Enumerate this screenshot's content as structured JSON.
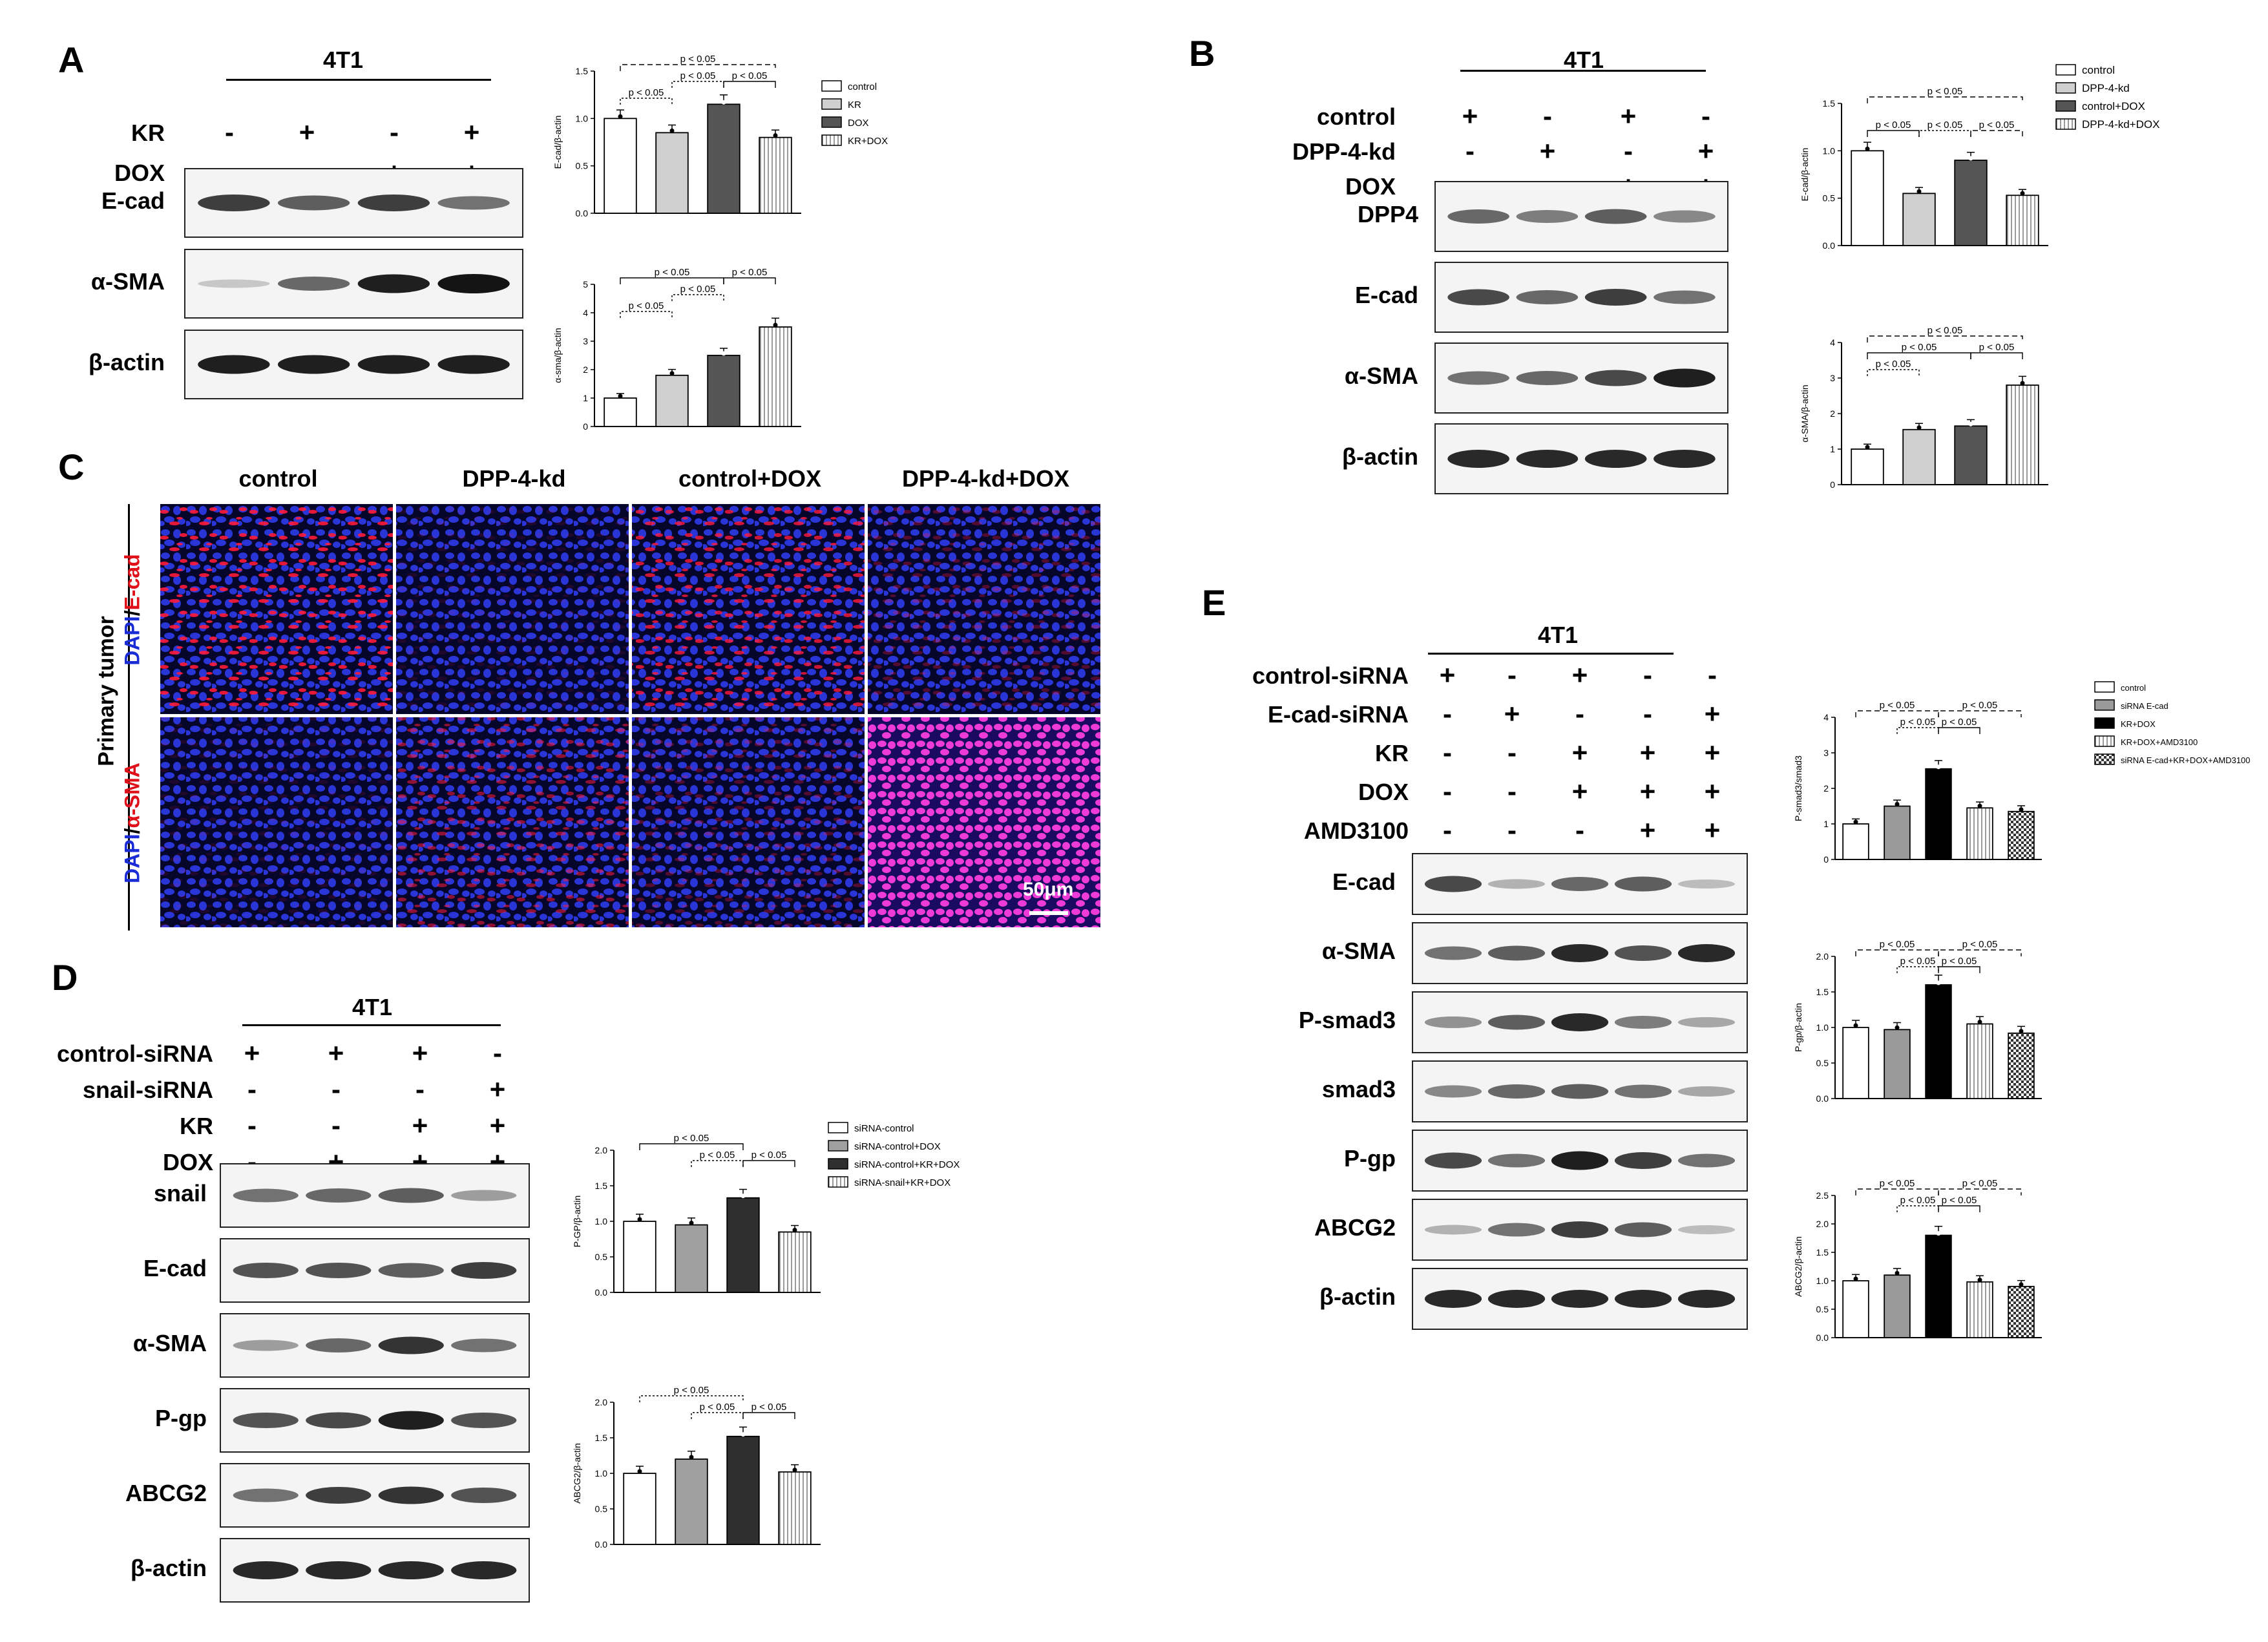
{
  "p_label": "p < 0.05",
  "panels": {
    "A": {
      "letter": "A",
      "cell_line": "4T1",
      "conditions": [
        {
          "label": "KR",
          "marks": [
            "-",
            "+",
            "-",
            "+"
          ]
        },
        {
          "label": "DOX",
          "marks": [
            "-",
            "-",
            "+",
            "+"
          ]
        }
      ],
      "blots": [
        {
          "label": "E-cad",
          "intensity": [
            0.8,
            0.65,
            0.8,
            0.55
          ]
        },
        {
          "label": "α-SMA",
          "intensity": [
            0.15,
            0.6,
            0.95,
            1.0
          ]
        },
        {
          "label": "β-actin",
          "intensity": [
            0.95,
            0.95,
            0.95,
            0.95
          ]
        }
      ],
      "legend": [
        "control",
        "KR",
        "DOX",
        "KR+DOX"
      ],
      "charts": [
        {
          "ylabel": "E-cad/β-actin",
          "ylim": [
            0,
            1.5
          ],
          "ticks": [
            "0.0",
            "0.5",
            "1.0",
            "1.5"
          ],
          "values": [
            1.0,
            0.85,
            1.15,
            0.8
          ]
        },
        {
          "ylabel": "α-sma/β-actin",
          "ylim": [
            0,
            5
          ],
          "ticks": [
            "0",
            "1",
            "2",
            "3",
            "4",
            "5"
          ],
          "values": [
            1.0,
            1.8,
            2.5,
            3.5
          ]
        }
      ]
    },
    "B": {
      "letter": "B",
      "cell_line": "4T1",
      "conditions": [
        {
          "label": "control",
          "marks": [
            "+",
            "-",
            "+",
            "-"
          ]
        },
        {
          "label": "DPP-4-kd",
          "marks": [
            "-",
            "+",
            "-",
            "+"
          ]
        },
        {
          "label": "DOX",
          "marks": [
            "-",
            "-",
            "+",
            "+"
          ]
        }
      ],
      "blots": [
        {
          "label": "DPP4",
          "intensity": [
            0.6,
            0.5,
            0.65,
            0.45
          ]
        },
        {
          "label": "E-cad",
          "intensity": [
            0.75,
            0.6,
            0.8,
            0.55
          ]
        },
        {
          "label": "α-SMA",
          "intensity": [
            0.55,
            0.6,
            0.75,
            0.95
          ]
        },
        {
          "label": "β-actin",
          "intensity": [
            0.9,
            0.9,
            0.9,
            0.9
          ]
        }
      ],
      "legend": [
        "control",
        "DPP-4-kd",
        "control+DOX",
        "DPP-4-kd+DOX"
      ],
      "charts": [
        {
          "ylabel": "E-cad/β-actin",
          "ylim": [
            0,
            1.5
          ],
          "ticks": [
            "0.0",
            "0.5",
            "1.0",
            "1.5"
          ],
          "values": [
            1.0,
            0.55,
            0.9,
            0.53
          ]
        },
        {
          "ylabel": "α-SMA/β-actin",
          "ylim": [
            0,
            4
          ],
          "ticks": [
            "0",
            "1",
            "2",
            "3",
            "4"
          ],
          "values": [
            1.0,
            1.55,
            1.65,
            2.8
          ]
        }
      ]
    },
    "C": {
      "letter": "C",
      "columns": [
        "control",
        "DPP-4-kd",
        "control+DOX",
        "DPP-4-kd+DOX"
      ],
      "side_label": "Primary tumor",
      "row_labels": [
        {
          "dapi": "DAPI",
          "slash": "/",
          "marker": "E-cad"
        },
        {
          "dapi": "DAPI",
          "slash": "/",
          "marker": "α-SMA"
        }
      ],
      "scale_bar": "50μm"
    },
    "D": {
      "letter": "D",
      "cell_line": "4T1",
      "conditions": [
        {
          "label": "control-siRNA",
          "marks": [
            "+",
            "+",
            "+",
            "-"
          ]
        },
        {
          "label": "snail-siRNA",
          "marks": [
            "-",
            "-",
            "-",
            "+"
          ]
        },
        {
          "label": "KR",
          "marks": [
            "-",
            "-",
            "+",
            "+"
          ]
        },
        {
          "label": "DOX",
          "marks": [
            "-",
            "+",
            "+",
            "+"
          ]
        }
      ],
      "blots": [
        {
          "label": "snail",
          "intensity": [
            0.55,
            0.6,
            0.65,
            0.35
          ]
        },
        {
          "label": "E-cad",
          "intensity": [
            0.7,
            0.7,
            0.65,
            0.8
          ]
        },
        {
          "label": "α-SMA",
          "intensity": [
            0.35,
            0.6,
            0.85,
            0.55
          ]
        },
        {
          "label": "P-gp",
          "intensity": [
            0.7,
            0.75,
            0.95,
            0.7
          ]
        },
        {
          "label": "ABCG2",
          "intensity": [
            0.55,
            0.8,
            0.85,
            0.7
          ]
        },
        {
          "label": "β-actin",
          "intensity": [
            0.9,
            0.9,
            0.9,
            0.9
          ]
        }
      ],
      "legend": [
        "siRNA-control",
        "siRNA-control+DOX",
        "siRNA-control+KR+DOX",
        "siRNA-snail+KR+DOX"
      ],
      "charts": [
        {
          "ylabel": "P-GP/β-actin",
          "ylim": [
            0,
            2.0
          ],
          "ticks": [
            "0.0",
            "0.5",
            "1.0",
            "1.5",
            "2.0"
          ],
          "values": [
            1.0,
            0.95,
            1.33,
            0.85
          ]
        },
        {
          "ylabel": "ABCG2/β-actin",
          "ylim": [
            0,
            2.0
          ],
          "ticks": [
            "0.0",
            "0.5",
            "1.0",
            "1.5",
            "2.0"
          ],
          "values": [
            1.0,
            1.2,
            1.52,
            1.02
          ]
        }
      ]
    },
    "E": {
      "letter": "E",
      "cell_line": "4T1",
      "conditions": [
        {
          "label": "control-siRNA",
          "marks": [
            "+",
            "-",
            "+",
            "-",
            "-"
          ]
        },
        {
          "label": "E-cad-siRNA",
          "marks": [
            "-",
            "+",
            "-",
            "-",
            "+"
          ]
        },
        {
          "label": "KR",
          "marks": [
            "-",
            "-",
            "+",
            "+",
            "+"
          ]
        },
        {
          "label": "DOX",
          "marks": [
            "-",
            "-",
            "+",
            "+",
            "+"
          ]
        },
        {
          "label": "AMD3100",
          "marks": [
            "-",
            "-",
            "-",
            "+",
            "+"
          ]
        }
      ],
      "blots": [
        {
          "label": "E-cad",
          "intensity": [
            0.75,
            0.25,
            0.6,
            0.65,
            0.2
          ]
        },
        {
          "label": "α-SMA",
          "intensity": [
            0.55,
            0.65,
            0.9,
            0.7,
            0.9
          ]
        },
        {
          "label": "P-smad3",
          "intensity": [
            0.4,
            0.65,
            0.9,
            0.5,
            0.3
          ]
        },
        {
          "label": "smad3",
          "intensity": [
            0.45,
            0.6,
            0.65,
            0.55,
            0.3
          ]
        },
        {
          "label": "P-gp",
          "intensity": [
            0.75,
            0.55,
            0.95,
            0.8,
            0.55
          ]
        },
        {
          "label": "ABCG2",
          "intensity": [
            0.25,
            0.55,
            0.8,
            0.65,
            0.2
          ]
        },
        {
          "label": "β-actin",
          "intensity": [
            0.9,
            0.9,
            0.9,
            0.9,
            0.9
          ]
        }
      ],
      "legend": [
        "control",
        "siRNA E-cad",
        "KR+DOX",
        "KR+DOX+AMD3100",
        "siRNA E-cad+KR+DOX+AMD3100"
      ],
      "charts": [
        {
          "ylabel": "P-smad3/smad3",
          "ylim": [
            0,
            4
          ],
          "ticks": [
            "0",
            "1",
            "2",
            "3",
            "4"
          ],
          "values": [
            1.0,
            1.5,
            2.55,
            1.45,
            1.35
          ]
        },
        {
          "ylabel": "P-gp/β-actin",
          "ylim": [
            0,
            2.0
          ],
          "ticks": [
            "0.0",
            "0.5",
            "1.0",
            "1.5",
            "2.0"
          ],
          "values": [
            1.0,
            0.97,
            1.6,
            1.05,
            0.92
          ]
        },
        {
          "ylabel": "ABCG2/β-actin",
          "ylim": [
            0,
            2.5
          ],
          "ticks": [
            "0.0",
            "0.5",
            "1.0",
            "1.5",
            "2.0",
            "2.5"
          ],
          "values": [
            1.0,
            1.1,
            1.8,
            0.98,
            0.9
          ]
        }
      ]
    }
  }
}
